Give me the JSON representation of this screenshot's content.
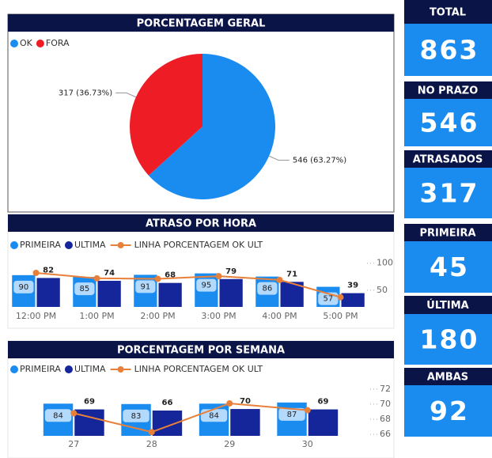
{
  "chart_data": [
    {
      "type": "pie",
      "title": "PORCENTAGEM GERAL",
      "categories": [
        "OK",
        "FORA"
      ],
      "values": [
        546,
        317
      ],
      "value_labels": [
        "546 (63.27%)",
        "317 (36.73%)"
      ],
      "colors": [
        "#1a8cf0",
        "#ee1c25"
      ],
      "legend": "top-left"
    },
    {
      "type": "combo",
      "title": "ATRASO POR HORA",
      "categories": [
        "12:00 PM",
        "1:00 PM",
        "2:00 PM",
        "3:00 PM",
        "4:00 PM",
        "5:00 PM"
      ],
      "series": [
        {
          "name": "PRIMEIRA",
          "color": "#1a8cf0",
          "type": "bar",
          "values": [
            90,
            85,
            91,
            95,
            86,
            57
          ]
        },
        {
          "name": "ULTIMA",
          "color": "#15259a",
          "type": "bar",
          "values": [
            82,
            74,
            68,
            79,
            71,
            39
          ]
        },
        {
          "name": "LINHA PORCENTAGEM OK ULT",
          "color": "#e8803a",
          "type": "line",
          "axis": "y2",
          "values": [
            82,
            72,
            71,
            76,
            69,
            37
          ]
        }
      ],
      "ylim": [
        0,
        130
      ],
      "y2lim": [
        19,
        104
      ],
      "y2ticks": [
        50,
        100
      ],
      "legend": "top-left"
    },
    {
      "type": "combo",
      "title": "PORCENTAGEM POR SEMANA",
      "categories": [
        "27",
        "28",
        "29",
        "30"
      ],
      "series": [
        {
          "name": "PRIMEIRA",
          "color": "#1a8cf0",
          "type": "bar",
          "values": [
            84,
            83,
            84,
            87
          ]
        },
        {
          "name": "ULTIMA",
          "color": "#15259a",
          "type": "bar",
          "values": [
            69,
            66,
            70,
            69
          ]
        },
        {
          "name": "LINHA PORCENTAGEM OK ULT",
          "color": "#e8803a",
          "type": "line",
          "axis": "y2",
          "values": [
            68.8,
            66.3,
            70.1,
            69.2
          ]
        }
      ],
      "ylim": [
        0,
        130
      ],
      "y2lim": [
        65.8,
        72.4
      ],
      "y2ticks": [
        66,
        68,
        70,
        72
      ],
      "legend": "top-left"
    }
  ],
  "kpis": [
    {
      "label": "TOTAL",
      "value": 863
    },
    {
      "label": "NO PRAZO",
      "value": 546
    },
    {
      "label": "ATRASADOS",
      "value": 317
    },
    {
      "label": "PRIMEIRA",
      "value": 45
    },
    {
      "label": "ÚLTIMA",
      "value": 180
    },
    {
      "label": "AMBAS",
      "value": 92
    }
  ]
}
